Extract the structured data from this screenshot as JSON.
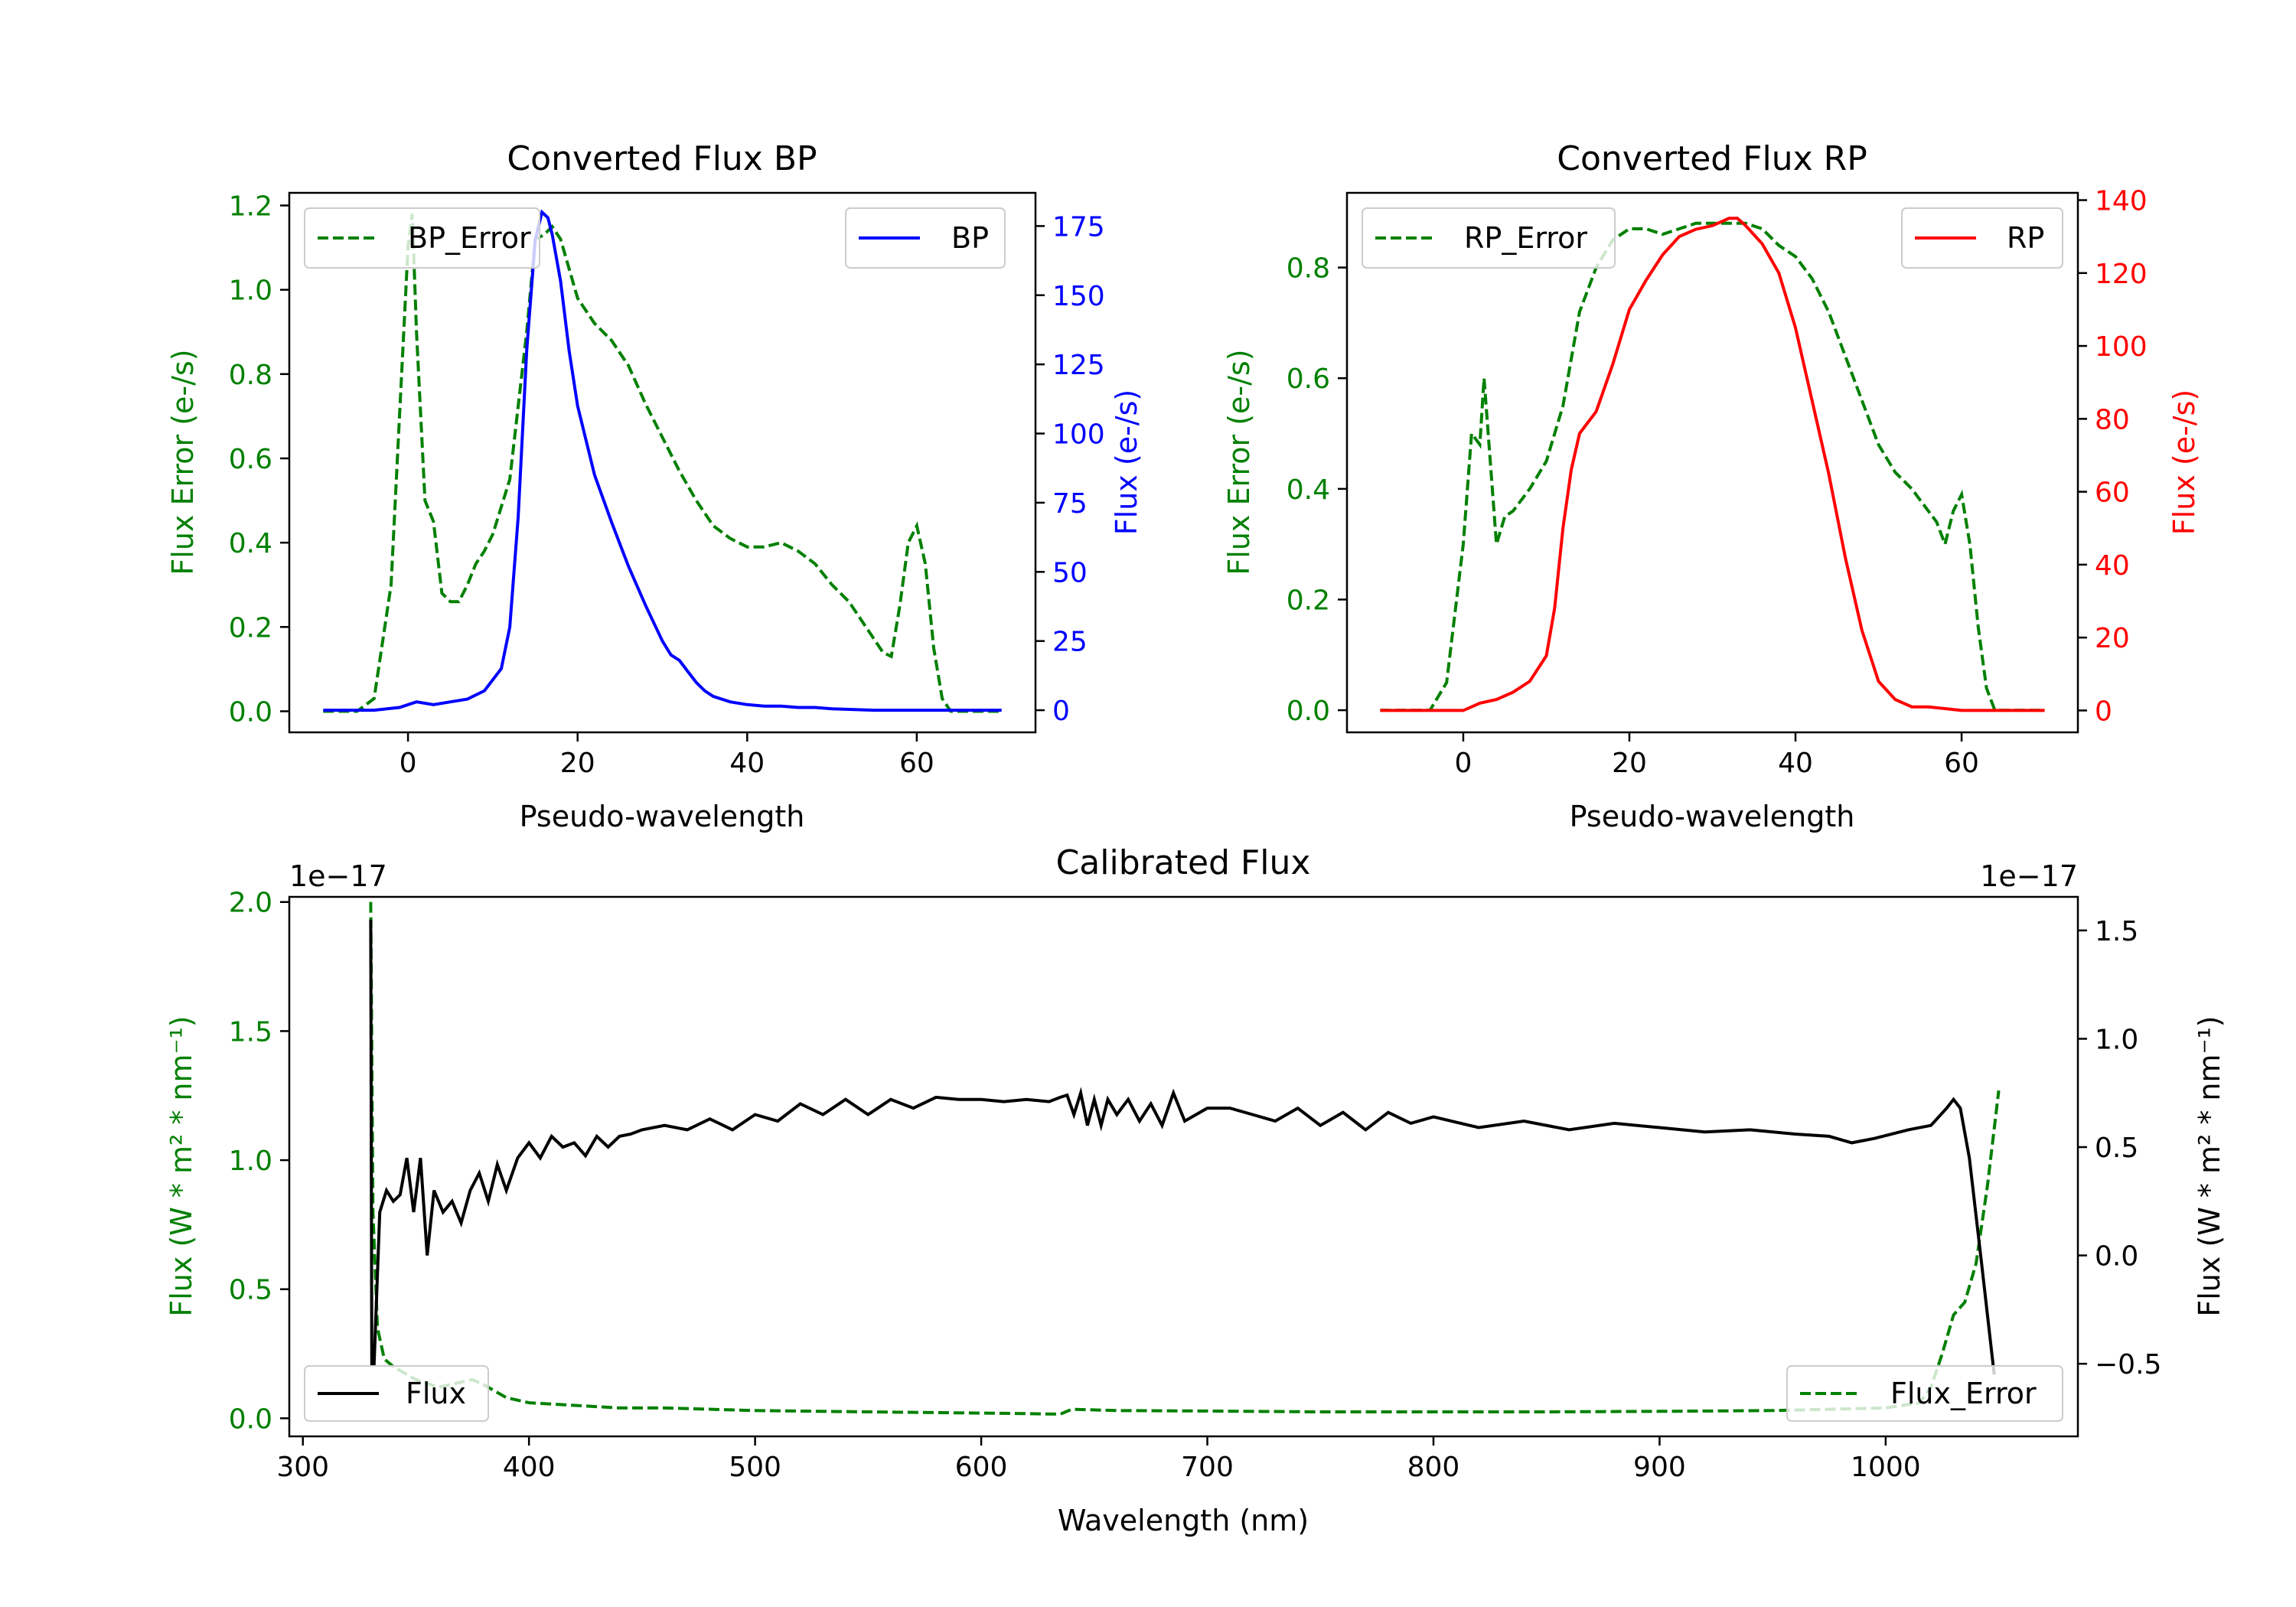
{
  "colors": {
    "green": "#008000",
    "blue": "#0000ff",
    "red": "#ff0000",
    "black": "#000000"
  },
  "chart_data": [
    {
      "id": "bp",
      "type": "line",
      "title": "Converted Flux BP",
      "xlabel": "Pseudo-wavelength",
      "ylabel_left": "Flux Error (e-/s)",
      "ylabel_right": "Flux (e-/s)",
      "xlim": [
        -14,
        74
      ],
      "ylim_left": [
        -0.05,
        1.23
      ],
      "ylim_right": [
        -8,
        187
      ],
      "xticks": [
        "0",
        "20",
        "40",
        "60"
      ],
      "yticks_left": [
        "0.0",
        "0.2",
        "0.4",
        "0.6",
        "0.8",
        "1.0",
        "1.2"
      ],
      "yticks_right": [
        "0",
        "25",
        "50",
        "75",
        "100",
        "125",
        "150",
        "175"
      ],
      "legend_left": "BP_Error",
      "legend_right": "BP",
      "error_series": {
        "name": "BP_Error",
        "axis": "left",
        "color": "#008000",
        "dash": true,
        "x": [
          -10,
          -6,
          -4,
          -2,
          -1,
          0,
          0.5,
          1,
          2,
          3,
          4,
          5,
          6,
          7,
          8,
          9,
          10,
          12,
          14,
          15,
          16,
          17,
          18,
          20,
          22,
          24,
          26,
          28,
          30,
          32,
          34,
          36,
          38,
          40,
          42,
          44,
          46,
          48,
          50,
          52,
          54,
          56,
          57,
          58,
          59,
          60,
          61,
          62,
          63,
          64,
          66,
          70
        ],
        "y": [
          0.0,
          0.0,
          0.03,
          0.3,
          0.7,
          1.1,
          1.18,
          0.9,
          0.5,
          0.45,
          0.28,
          0.26,
          0.26,
          0.3,
          0.35,
          0.38,
          0.42,
          0.55,
          0.9,
          1.12,
          1.13,
          1.15,
          1.12,
          0.98,
          0.92,
          0.88,
          0.82,
          0.73,
          0.65,
          0.57,
          0.5,
          0.44,
          0.41,
          0.39,
          0.39,
          0.4,
          0.38,
          0.35,
          0.3,
          0.26,
          0.2,
          0.14,
          0.13,
          0.25,
          0.4,
          0.44,
          0.35,
          0.15,
          0.03,
          0.0,
          0.0,
          0.0
        ]
      },
      "flux_series": {
        "name": "BP",
        "axis": "right",
        "color": "#0000ff",
        "dash": false,
        "x": [
          -10,
          -4,
          -1,
          1,
          3,
          5,
          7,
          9,
          11,
          12,
          13,
          14,
          15,
          15.8,
          16.5,
          17,
          18,
          19,
          20,
          22,
          24,
          26,
          28,
          30,
          31,
          32,
          33,
          34,
          35,
          36,
          38,
          40,
          42,
          44,
          46,
          48,
          50,
          55,
          60,
          70
        ],
        "y": [
          0,
          0,
          1,
          3,
          2,
          3,
          4,
          7,
          15,
          30,
          70,
          130,
          170,
          180,
          178,
          172,
          155,
          130,
          110,
          85,
          68,
          52,
          38,
          25,
          20,
          18,
          14,
          10,
          7,
          5,
          3,
          2,
          1.5,
          1.5,
          1,
          1,
          0.5,
          0,
          0,
          0
        ]
      }
    },
    {
      "id": "rp",
      "type": "line",
      "title": "Converted Flux RP",
      "xlabel": "Pseudo-wavelength",
      "ylabel_left": "Flux Error (e-/s)",
      "ylabel_right": "Flux (e-/s)",
      "xlim": [
        -14,
        74
      ],
      "ylim_left": [
        -0.04,
        0.935
      ],
      "ylim_right": [
        -6,
        142
      ],
      "xticks": [
        "0",
        "20",
        "40",
        "60"
      ],
      "yticks_left": [
        "0.0",
        "0.2",
        "0.4",
        "0.6",
        "0.8"
      ],
      "yticks_right": [
        "0",
        "20",
        "40",
        "60",
        "80",
        "100",
        "120",
        "140"
      ],
      "legend_left": "RP_Error",
      "legend_right": "RP",
      "error_series": {
        "name": "RP_Error",
        "axis": "left",
        "color": "#008000",
        "dash": true,
        "x": [
          -10,
          -4,
          -2,
          0,
          1,
          2,
          2.5,
          3,
          4,
          5,
          6,
          8,
          10,
          12,
          14,
          16,
          18,
          20,
          22,
          24,
          26,
          28,
          30,
          32,
          34,
          36,
          38,
          40,
          42,
          44,
          46,
          48,
          50,
          52,
          54,
          55,
          56,
          57,
          58,
          59,
          60,
          61,
          62,
          63,
          64,
          66,
          70
        ],
        "y": [
          0.0,
          0.0,
          0.05,
          0.3,
          0.5,
          0.48,
          0.6,
          0.5,
          0.3,
          0.35,
          0.36,
          0.4,
          0.45,
          0.55,
          0.72,
          0.8,
          0.85,
          0.87,
          0.87,
          0.86,
          0.87,
          0.88,
          0.88,
          0.88,
          0.88,
          0.87,
          0.84,
          0.82,
          0.78,
          0.72,
          0.64,
          0.56,
          0.48,
          0.43,
          0.4,
          0.38,
          0.36,
          0.34,
          0.3,
          0.36,
          0.39,
          0.3,
          0.15,
          0.04,
          0.0,
          0.0,
          0.0
        ]
      },
      "flux_series": {
        "name": "RP",
        "axis": "right",
        "color": "#ff0000",
        "dash": false,
        "x": [
          -10,
          -4,
          0,
          1,
          2,
          4,
          6,
          8,
          10,
          11,
          12,
          13,
          14,
          16,
          18,
          20,
          22,
          24,
          26,
          28,
          30,
          32,
          33,
          34,
          36,
          38,
          40,
          42,
          44,
          46,
          48,
          50,
          52,
          54,
          56,
          58,
          60,
          62,
          70
        ],
        "y": [
          0,
          0,
          0,
          1,
          2,
          3,
          5,
          8,
          15,
          28,
          50,
          66,
          76,
          82,
          95,
          110,
          118,
          125,
          130,
          132,
          133,
          135,
          135,
          133,
          128,
          120,
          105,
          85,
          65,
          42,
          22,
          8,
          3,
          1,
          1,
          0.5,
          0,
          0,
          0
        ]
      }
    },
    {
      "id": "calibrated",
      "type": "line",
      "title": "Calibrated Flux",
      "xlabel": "Wavelength (nm)",
      "ylabel_left": "Flux (W * m² * nm⁻¹)",
      "ylabel_right": "Flux (W * m² * nm⁻¹)",
      "offset_left": "1e−17",
      "offset_right": "1e−17",
      "xlim": [
        294,
        1085
      ],
      "ylim_left": [
        -0.07,
        2.02
      ],
      "ylim_right": [
        -0.835,
        1.655
      ],
      "xticks": [
        "300",
        "400",
        "500",
        "600",
        "700",
        "800",
        "900",
        "1000"
      ],
      "yticks_left": [
        "0.0",
        "0.5",
        "1.0",
        "1.5",
        "2.0"
      ],
      "yticks_right": [
        "−0.5",
        "0.0",
        "0.5",
        "1.0",
        "1.5"
      ],
      "legend_left": "Flux",
      "legend_right": "Flux_Error",
      "flux_series": {
        "name": "Flux",
        "axis": "right",
        "color": "#000000",
        "dash": false,
        "x": [
          330,
          330.5,
          331.5,
          334,
          337,
          340,
          343,
          346,
          349,
          352,
          355,
          358,
          362,
          366,
          370,
          374,
          378,
          382,
          386,
          390,
          395,
          400,
          405,
          410,
          415,
          420,
          425,
          430,
          435,
          440,
          445,
          450,
          460,
          470,
          480,
          490,
          500,
          510,
          520,
          530,
          540,
          550,
          560,
          570,
          580,
          590,
          600,
          610,
          620,
          630,
          635,
          638,
          641,
          644,
          647,
          650,
          653,
          656,
          660,
          665,
          670,
          675,
          680,
          685,
          690,
          700,
          710,
          720,
          730,
          740,
          750,
          760,
          770,
          780,
          790,
          800,
          820,
          840,
          860,
          880,
          900,
          920,
          940,
          960,
          975,
          985,
          995,
          1010,
          1020,
          1027,
          1030,
          1033,
          1037,
          1042,
          1048
        ],
        "y": [
          1.55,
          -0.5,
          -0.5,
          0.2,
          0.3,
          0.25,
          0.28,
          0.45,
          0.2,
          0.45,
          0.0,
          0.3,
          0.2,
          0.25,
          0.15,
          0.3,
          0.38,
          0.25,
          0.42,
          0.3,
          0.45,
          0.52,
          0.45,
          0.55,
          0.5,
          0.52,
          0.46,
          0.55,
          0.5,
          0.55,
          0.56,
          0.58,
          0.6,
          0.58,
          0.63,
          0.58,
          0.65,
          0.62,
          0.7,
          0.65,
          0.72,
          0.65,
          0.72,
          0.68,
          0.73,
          0.72,
          0.72,
          0.71,
          0.72,
          0.71,
          0.73,
          0.74,
          0.65,
          0.75,
          0.6,
          0.72,
          0.6,
          0.72,
          0.65,
          0.72,
          0.62,
          0.7,
          0.6,
          0.75,
          0.62,
          0.68,
          0.68,
          0.65,
          0.62,
          0.68,
          0.6,
          0.66,
          0.58,
          0.66,
          0.61,
          0.64,
          0.59,
          0.62,
          0.58,
          0.61,
          0.59,
          0.57,
          0.58,
          0.56,
          0.55,
          0.52,
          0.54,
          0.58,
          0.6,
          0.68,
          0.72,
          0.68,
          0.45,
          0.0,
          -0.55
        ]
      },
      "error_series": {
        "name": "Flux_Error",
        "axis": "left",
        "color": "#008000",
        "dash": true,
        "x": [
          330,
          331,
          333,
          336,
          340,
          350,
          360,
          370,
          375,
          380,
          390,
          400,
          420,
          440,
          460,
          500,
          550,
          600,
          620,
          635,
          640,
          660,
          700,
          750,
          800,
          850,
          900,
          950,
          1000,
          1015,
          1020,
          1025,
          1030,
          1035,
          1040,
          1045,
          1050
        ],
        "y": [
          2.0,
          0.8,
          0.35,
          0.23,
          0.2,
          0.15,
          0.12,
          0.14,
          0.15,
          0.13,
          0.08,
          0.06,
          0.05,
          0.04,
          0.04,
          0.03,
          0.025,
          0.02,
          0.018,
          0.016,
          0.035,
          0.03,
          0.028,
          0.025,
          0.025,
          0.025,
          0.027,
          0.03,
          0.04,
          0.06,
          0.12,
          0.25,
          0.4,
          0.45,
          0.6,
          0.9,
          1.27
        ]
      }
    }
  ]
}
